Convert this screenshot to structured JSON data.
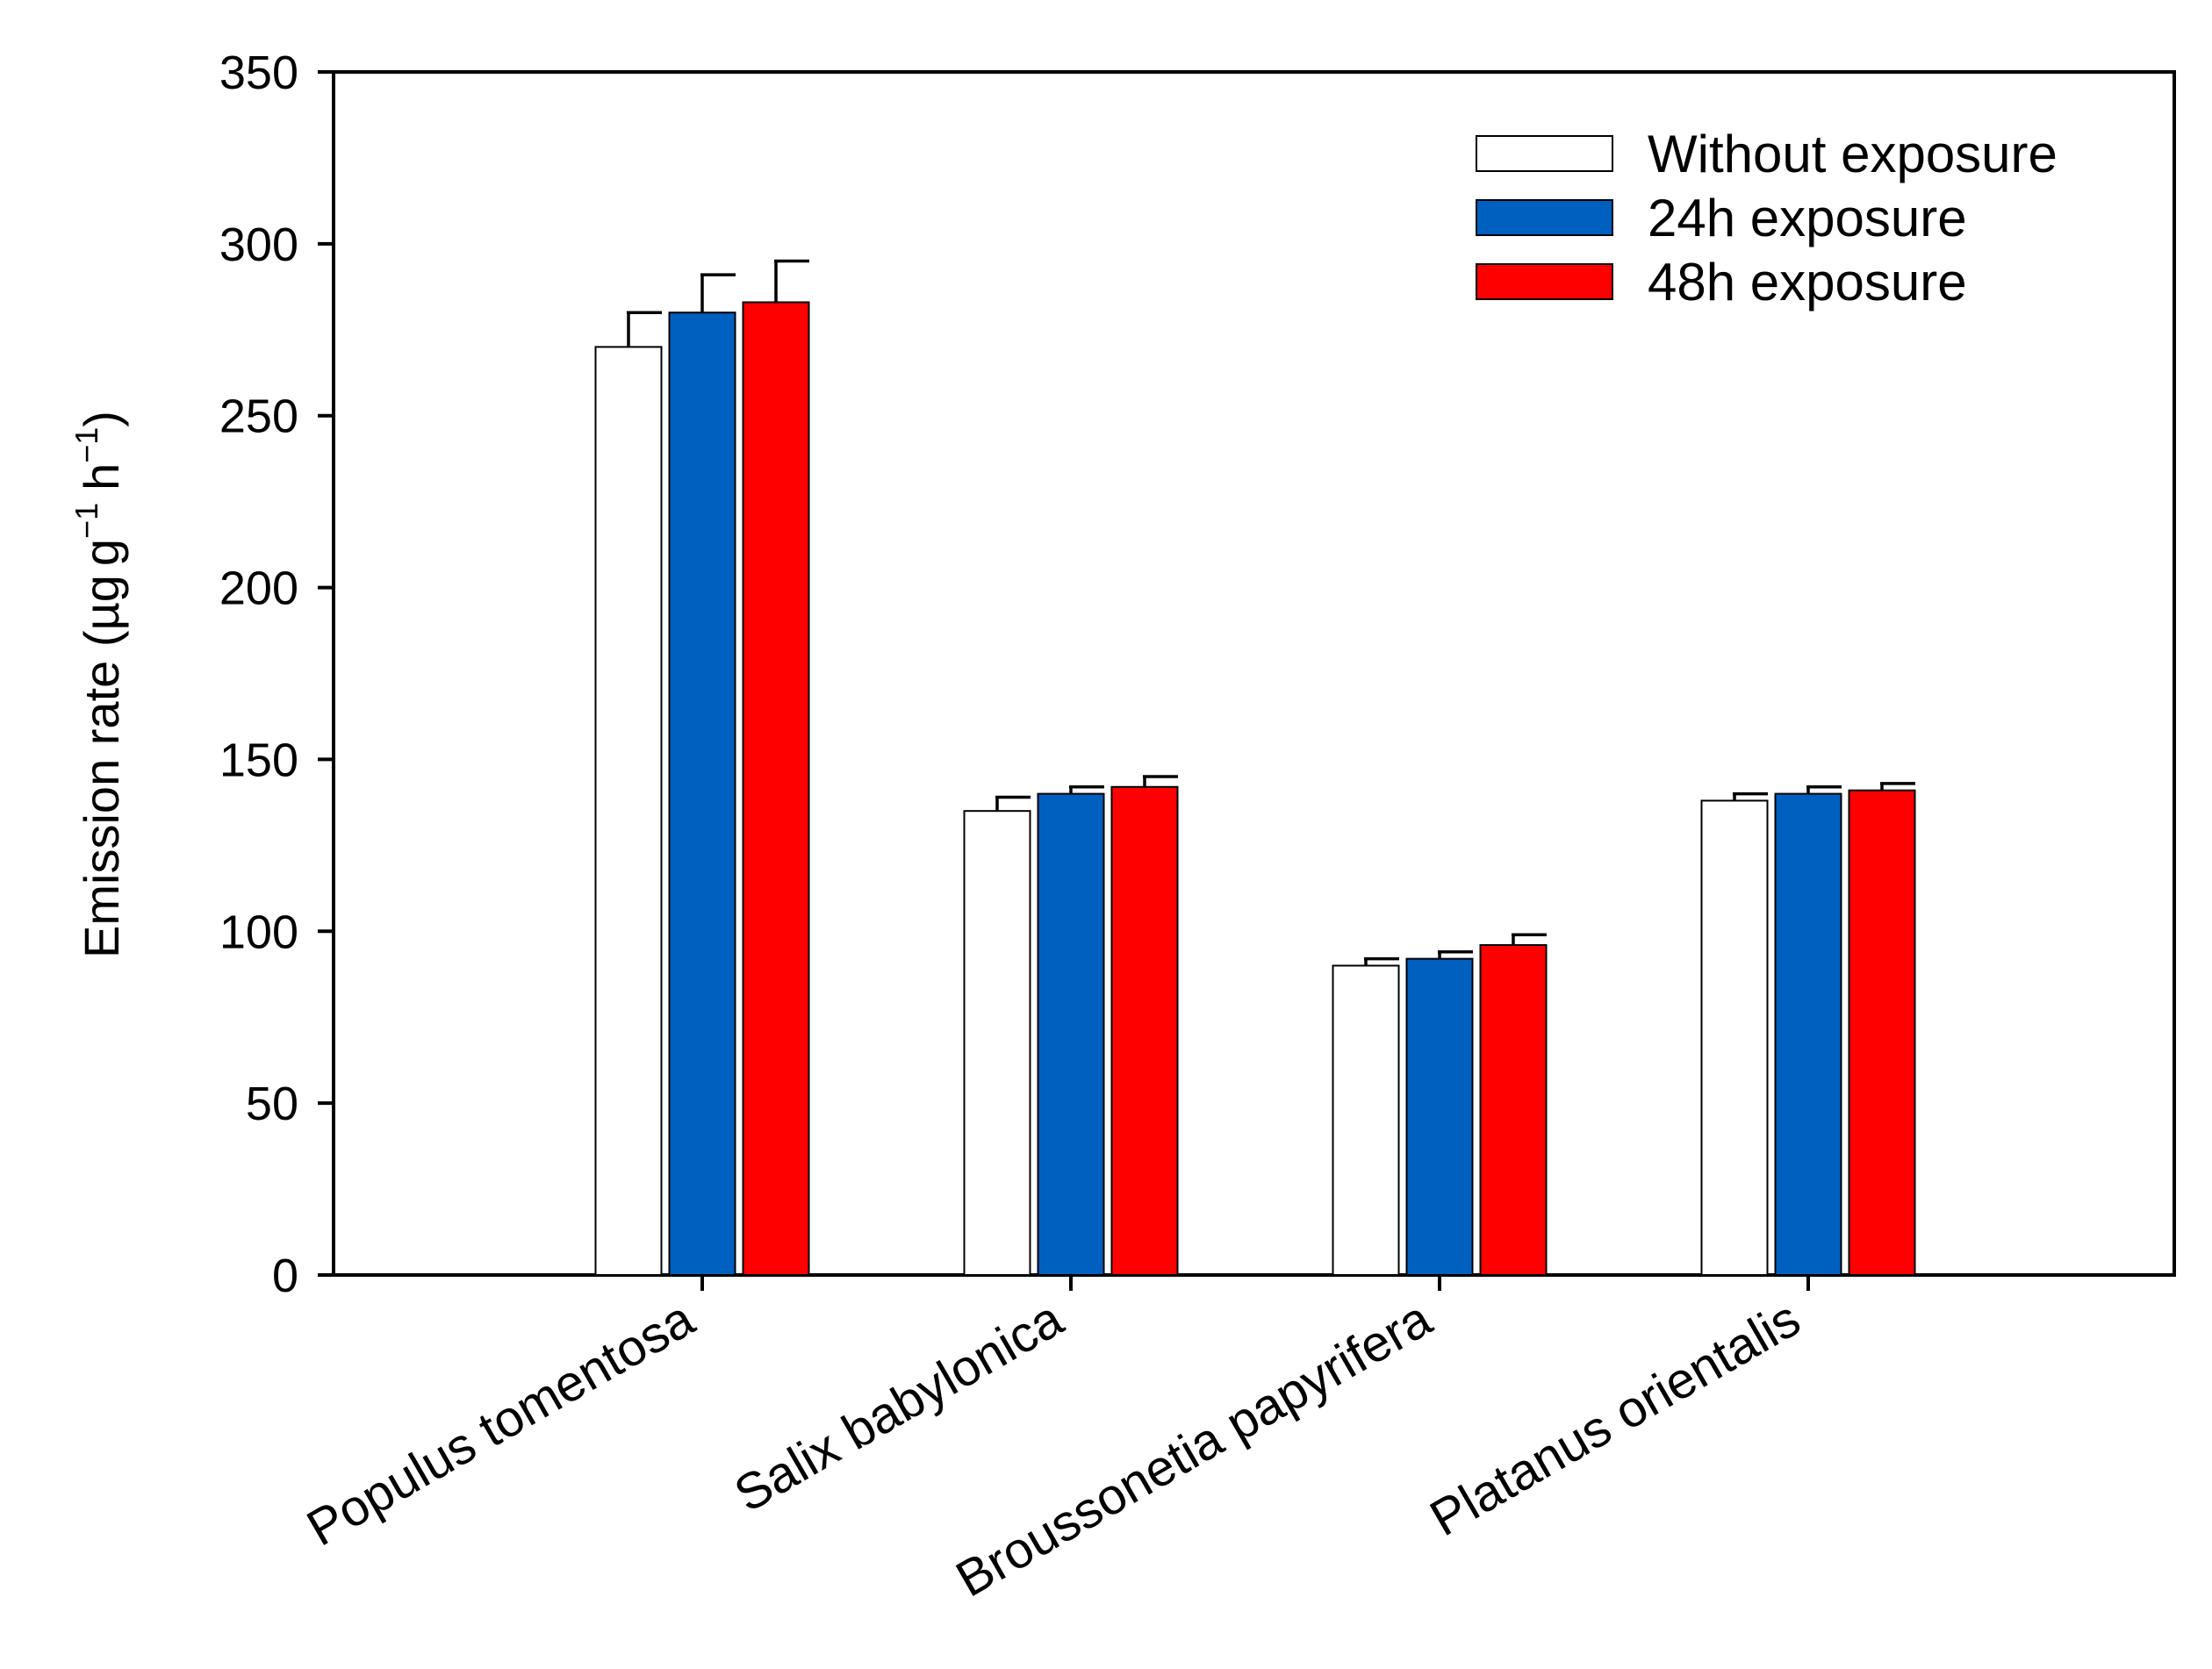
{
  "chart_data": {
    "type": "bar",
    "title": "",
    "xlabel": "",
    "ylabel": {
      "main": "Emission rate (",
      "unit_mu": "µ",
      "unit_g": "g",
      "g": "g",
      "sup1": "−1",
      "h": "h",
      "sup2": "−1",
      "close": ")"
    },
    "ylim": [
      0,
      350
    ],
    "yticks": [
      0,
      50,
      100,
      150,
      200,
      250,
      300,
      350
    ],
    "categories": [
      "Populus tomentosa",
      "Salix babylonica",
      "Broussonetia papyrifera",
      "Platanus orientalis"
    ],
    "series": [
      {
        "name": "Without exposure",
        "color": "#ffffff",
        "values": [
          270,
          135,
          90,
          138
        ],
        "errors": [
          10,
          4,
          2,
          2
        ]
      },
      {
        "name": "24h exposure",
        "color": "#0060c0",
        "values": [
          280,
          140,
          92,
          140
        ],
        "errors": [
          11,
          2,
          2,
          2
        ]
      },
      {
        "name": "48h exposure",
        "color": "#ff0000",
        "values": [
          283,
          142,
          96,
          141
        ],
        "errors": [
          12,
          3,
          3,
          2
        ]
      }
    ],
    "legend_position": "top-right",
    "grid": false
  }
}
